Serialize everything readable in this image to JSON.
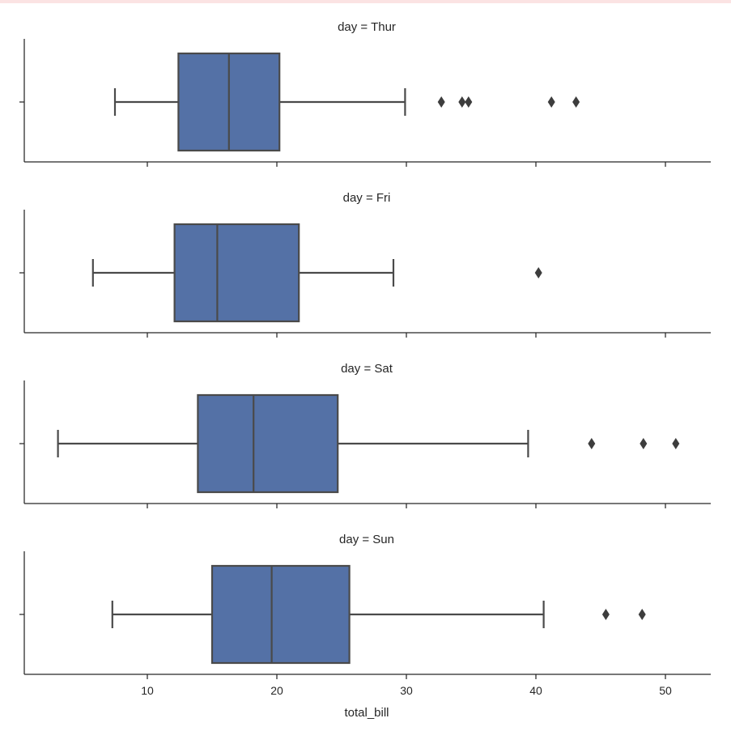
{
  "chart_data": {
    "type": "box",
    "facet_variable": "day",
    "xlabel": "total_bill",
    "xlim": [
      0.5,
      53.5
    ],
    "xticks": [
      10,
      20,
      30,
      40,
      50
    ],
    "box_color": "#5471a6",
    "line_color": "#4a4a4a",
    "panels": [
      {
        "title": "day = Thur",
        "whisker_low": 7.5,
        "q1": 12.4,
        "median": 16.3,
        "q3": 20.2,
        "whisker_high": 29.9,
        "outliers": [
          32.7,
          34.3,
          34.8,
          41.2,
          43.1
        ]
      },
      {
        "title": "day = Fri",
        "whisker_low": 5.8,
        "q1": 12.1,
        "median": 15.4,
        "q3": 21.7,
        "whisker_high": 29.0,
        "outliers": [
          40.2
        ]
      },
      {
        "title": "day = Sat",
        "whisker_low": 3.1,
        "q1": 13.9,
        "median": 18.2,
        "q3": 24.7,
        "whisker_high": 39.4,
        "outliers": [
          44.3,
          48.3,
          50.8
        ]
      },
      {
        "title": "day = Sun",
        "whisker_low": 7.3,
        "q1": 15.0,
        "median": 19.6,
        "q3": 25.6,
        "whisker_high": 40.6,
        "outliers": [
          45.4,
          48.2
        ]
      }
    ]
  }
}
